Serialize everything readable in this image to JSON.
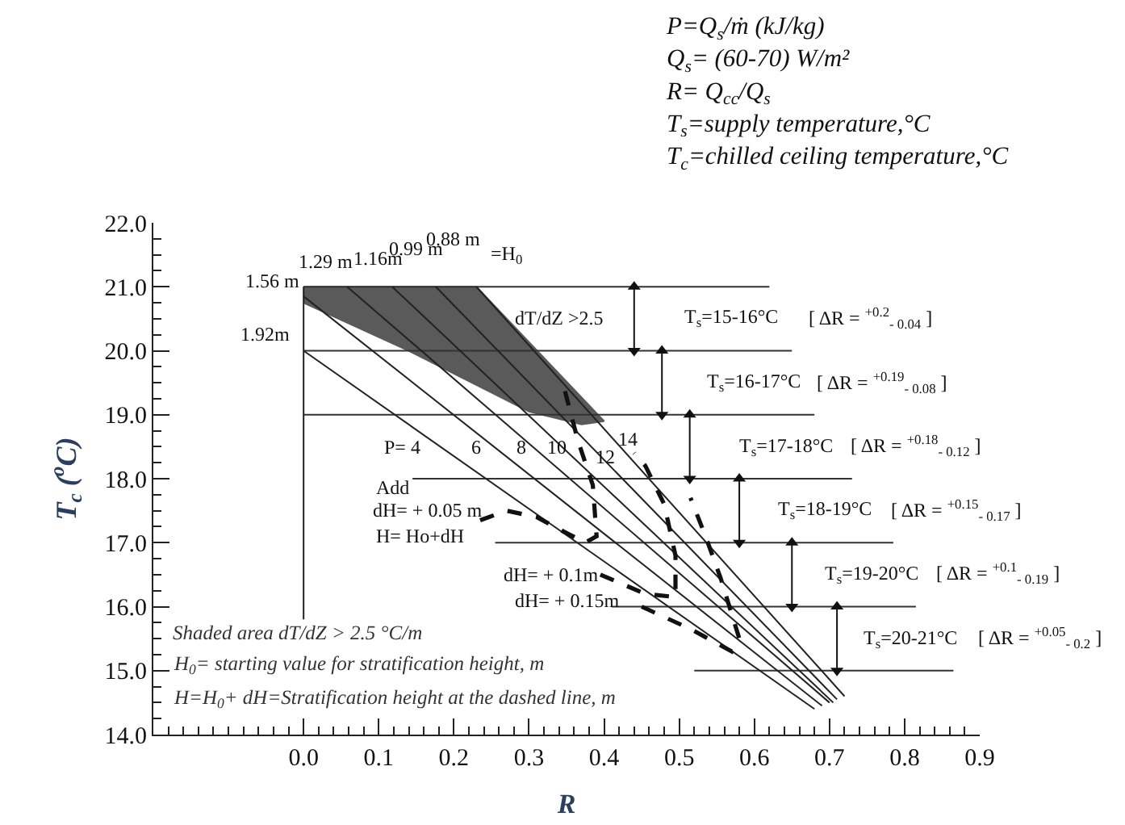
{
  "chart_data": {
    "type": "line",
    "subtitle": "P=Q$_{s}$/ṁ (kJ/kg)\nQ$_{s}$= (60-70) W/m²\nR= Q$_{cc}$/Q$_{s}$\nT$_{s}$=supply temperature,°C\nT$_{c}$=chilled ceiling temperature,°C",
    "xlabel": "R",
    "ylabel": "T$_{c}$ ($^{o}$C)",
    "xlim": [
      -0.2,
      0.9
    ],
    "xticks": [
      {
        "value": -0.2,
        "label": null
      },
      {
        "value": -0.18,
        "label": null
      },
      {
        "value": -0.16,
        "label": null
      },
      {
        "value": -0.14,
        "label": null
      },
      {
        "value": -0.12,
        "label": null
      },
      {
        "value": -0.1,
        "label": null
      },
      {
        "value": -0.08,
        "label": null
      },
      {
        "value": -0.06,
        "label": null
      },
      {
        "value": -0.04,
        "label": null
      },
      {
        "value": -0.02,
        "label": null
      },
      {
        "value": 0,
        "label": "0.0"
      },
      {
        "value": 0.02,
        "label": null
      },
      {
        "value": 0.04,
        "label": null
      },
      {
        "value": 0.06,
        "label": null
      },
      {
        "value": 0.08,
        "label": null
      },
      0.1,
      {
        "value": 0.12,
        "label": null
      },
      {
        "value": 0.14,
        "label": null
      },
      {
        "value": 0.16,
        "label": null
      },
      {
        "value": 0.18,
        "label": null
      },
      0.2,
      {
        "value": 0.22,
        "label": null
      },
      {
        "value": 0.24,
        "label": null
      },
      {
        "value": 0.26,
        "label": null
      },
      {
        "value": 0.28,
        "label": null
      },
      0.3,
      {
        "value": 0.32,
        "label": null
      },
      {
        "value": 0.34,
        "label": null
      },
      {
        "value": 0.36,
        "label": null
      },
      {
        "value": 0.38,
        "label": null
      },
      0.4,
      {
        "value": 0.42,
        "label": null
      },
      {
        "value": 0.44,
        "label": null
      },
      {
        "value": 0.46,
        "label": null
      },
      {
        "value": 0.48,
        "label": null
      },
      0.5,
      {
        "value": 0.52,
        "label": null
      },
      {
        "value": 0.54,
        "label": null
      },
      {
        "value": 0.56,
        "label": null
      },
      {
        "value": 0.58,
        "label": null
      },
      0.6,
      {
        "value": 0.62,
        "label": null
      },
      {
        "value": 0.64,
        "label": null
      },
      {
        "value": 0.66,
        "label": null
      },
      {
        "value": 0.68,
        "label": null
      },
      0.7,
      {
        "value": 0.72,
        "label": null
      },
      {
        "value": 0.74,
        "label": null
      },
      {
        "value": 0.76,
        "label": null
      },
      {
        "value": 0.78,
        "label": null
      },
      0.8,
      {
        "value": 0.82,
        "label": null
      },
      {
        "value": 0.84,
        "label": null
      },
      {
        "value": 0.86,
        "label": null
      },
      {
        "value": 0.88,
        "label": null
      },
      0.9
    ],
    "ylim": [
      14,
      22
    ],
    "yticks": [
      {
        "value": 14,
        "label": "14.0"
      },
      {
        "value": 14.25,
        "label": null
      },
      {
        "value": 14.5,
        "label": null
      },
      {
        "value": 14.75,
        "label": null
      },
      {
        "value": 15,
        "label": "15.0"
      },
      {
        "value": 15.25,
        "label": null
      },
      {
        "value": 15.5,
        "label": null
      },
      {
        "value": 15.75,
        "label": null
      },
      {
        "value": 16,
        "label": "16.0"
      },
      {
        "value": 16.25,
        "label": null
      },
      {
        "value": 16.5,
        "label": null
      },
      {
        "value": 16.75,
        "label": null
      },
      {
        "value": 17,
        "label": "17.0"
      },
      {
        "value": 17.25,
        "label": null
      },
      {
        "value": 17.5,
        "label": null
      },
      {
        "value": 17.75,
        "label": null
      },
      {
        "value": 18,
        "label": "18.0"
      },
      {
        "value": 18.25,
        "label": null
      },
      {
        "value": 18.5,
        "label": null
      },
      {
        "value": 18.75,
        "label": null
      },
      {
        "value": 19,
        "label": "19.0"
      },
      {
        "value": 19.25,
        "label": null
      },
      {
        "value": 19.5,
        "label": null
      },
      {
        "value": 19.75,
        "label": null
      },
      {
        "value": 20,
        "label": "20.0"
      },
      {
        "value": 20.25,
        "label": null
      },
      {
        "value": 20.5,
        "label": null
      },
      {
        "value": 20.75,
        "label": null
      },
      {
        "value": 21,
        "label": "21.0"
      },
      {
        "value": 21.25,
        "label": null
      },
      {
        "value": 21.5,
        "label": null
      },
      {
        "value": 21.75,
        "label": null
      },
      {
        "value": 22,
        "label": "22.0"
      }
    ],
    "marker": "none",
    "line_style": "solid",
    "series": [
      {
        "type": "area",
        "color": "#5a5a5a",
        "x": [
          0,
          0.23,
          0.4,
          0.37,
          0.3,
          0.14,
          0
        ],
        "values": [
          21,
          21,
          18.9,
          18.85,
          19.05,
          20.0,
          20.75
        ]
      },
      {
        "color": "#333333",
        "x": [
          0,
          0.62
        ],
        "values": [
          21,
          21
        ]
      },
      {
        "color": "#333333",
        "x": [
          0,
          0.65
        ],
        "values": [
          20,
          20
        ]
      },
      {
        "color": "#333333",
        "x": [
          0,
          0.68
        ],
        "values": [
          19,
          19
        ]
      },
      {
        "color": "#333333",
        "x": [
          0.145,
          0.73
        ],
        "values": [
          18,
          18
        ]
      },
      {
        "color": "#333333",
        "x": [
          0.255,
          0.785
        ],
        "values": [
          17,
          17
        ]
      },
      {
        "color": "#333333",
        "x": [
          0.41,
          0.815
        ],
        "values": [
          16,
          16
        ]
      },
      {
        "color": "#333333",
        "x": [
          0.52,
          0.865
        ],
        "values": [
          15,
          15
        ]
      },
      {
        "color": "#222222",
        "x": [
          0,
          0
        ],
        "values": [
          21,
          15.8
        ]
      },
      {
        "color": "#222222",
        "x": [
          0,
          0.68
        ],
        "values": [
          20.0,
          14.4
        ]
      },
      {
        "color": "#222222",
        "x": [
          0,
          0.69
        ],
        "values": [
          20.85,
          14.45
        ]
      },
      {
        "color": "#222222",
        "x": [
          0.058,
          0.7
        ],
        "values": [
          21,
          14.5
        ]
      },
      {
        "color": "#222222",
        "x": [
          0.118,
          0.705
        ],
        "values": [
          21,
          14.5
        ]
      },
      {
        "color": "#222222",
        "x": [
          0.176,
          0.71
        ],
        "values": [
          21,
          14.55
        ]
      },
      {
        "color": "#222222",
        "x": [
          0.23,
          0.72
        ],
        "values": [
          21,
          14.6
        ]
      },
      {
        "color": "#111111",
        "line_style": "dashed",
        "x": [
          0.235,
          0.27,
          0.31,
          0.35,
          0.375,
          0.39,
          0.385,
          0.365,
          0.345
        ],
        "values": [
          17.35,
          17.5,
          17.4,
          17.15,
          17.0,
          17.1,
          17.9,
          18.6,
          19.5
        ]
      },
      {
        "color": "#111111",
        "line_style": "dashed",
        "x": [
          0.395,
          0.455,
          0.495,
          0.495,
          0.48,
          0.455,
          0.44
        ],
        "values": [
          16.5,
          16.2,
          16.15,
          16.8,
          17.6,
          18.2,
          18.4
        ]
      },
      {
        "color": "#111111",
        "line_style": "dashed",
        "x": [
          0.45,
          0.515,
          0.57,
          0.58,
          0.555,
          0.535,
          0.515
        ],
        "values": [
          16.0,
          15.65,
          15.3,
          15.5,
          16.45,
          17.1,
          17.7
        ]
      },
      {
        "color": "#111111",
        "marker": "triangle",
        "x": [
          0.44,
          0.44
        ],
        "values": [
          21,
          20
        ]
      },
      {
        "color": "#111111",
        "marker": "triangle",
        "x": [
          0.477,
          0.477
        ],
        "values": [
          20,
          19
        ]
      },
      {
        "color": "#111111",
        "marker": "triangle",
        "x": [
          0.514,
          0.514
        ],
        "values": [
          19,
          18
        ]
      },
      {
        "color": "#111111",
        "marker": "triangle",
        "x": [
          0.58,
          0.58
        ],
        "values": [
          18,
          17
        ]
      },
      {
        "color": "#111111",
        "marker": "triangle",
        "x": [
          0.65,
          0.65
        ],
        "values": [
          17,
          16
        ]
      },
      {
        "color": "#111111",
        "marker": "triangle",
        "x": [
          0.71,
          0.71
        ],
        "values": [
          16,
          15
        ]
      }
    ],
    "annotations": [
      "T$_{s}$=15-16°C",
      "T$_{s}$=16-17°C",
      "T$_{s}$=17-18°C",
      "T$_{s}$=18-19°C",
      "T$_{s}$=19-20°C",
      "T$_{s}$=20-21°C",
      "[ ΔR = $^{+0.2}$$_{- 0.04}$ ]",
      "[ ΔR = $^{+0.19}$$_{- 0.08}$ ]",
      "[ ΔR = $^{+0.18}$$_{- 0.12}$ ]",
      "[ ΔR = $^{+0.15}$$_{- 0.17}$ ]",
      "[ ΔR = $^{+0.1}$$_{- 0.19}$ ]",
      "[ ΔR = $^{+0.05}$$_{- 0.2}$ ]",
      "1.56 m",
      "1.29 m",
      "1.16m",
      "0.99 m",
      "0.88 m",
      "=H$_{0}$",
      "1.92m",
      "P= 4",
      "6",
      "8",
      "10",
      "12",
      "14",
      "dT/dZ >2.5",
      "Add",
      "dH= + 0.05 m",
      "H= Ho+dH",
      "dH= + 0.1m",
      "dH= + 0.15m",
      "Shaded area dT/dZ > 2.5 °C/m",
      "H$_{0}$= starting value for stratification height, m",
      "H=H$_{0}$+ dH=Stratification height at the dashed line, m"
    ]
  }
}
